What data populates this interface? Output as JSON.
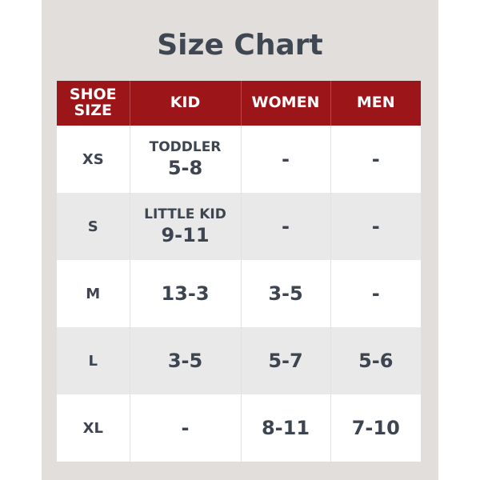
{
  "title": "Size Chart",
  "colors": {
    "header": "#9c1518",
    "text": "#3d4650",
    "background": "#e1dedb"
  },
  "headers": [
    "SHOE SIZE",
    "KID",
    "WOMEN",
    "MEN"
  ],
  "rows": [
    {
      "size": "XS",
      "kid_label": "TODDLER",
      "kid": "5-8",
      "women": "-",
      "men": "-"
    },
    {
      "size": "S",
      "kid_label": "LITTLE KID",
      "kid": "9-11",
      "women": "-",
      "men": "-"
    },
    {
      "size": "M",
      "kid": "13-3",
      "women": "3-5",
      "men": "-"
    },
    {
      "size": "L",
      "kid": "3-5",
      "women": "5-7",
      "men": "5-6"
    },
    {
      "size": "XL",
      "kid": "-",
      "women": "8-11",
      "men": "7-10"
    }
  ]
}
